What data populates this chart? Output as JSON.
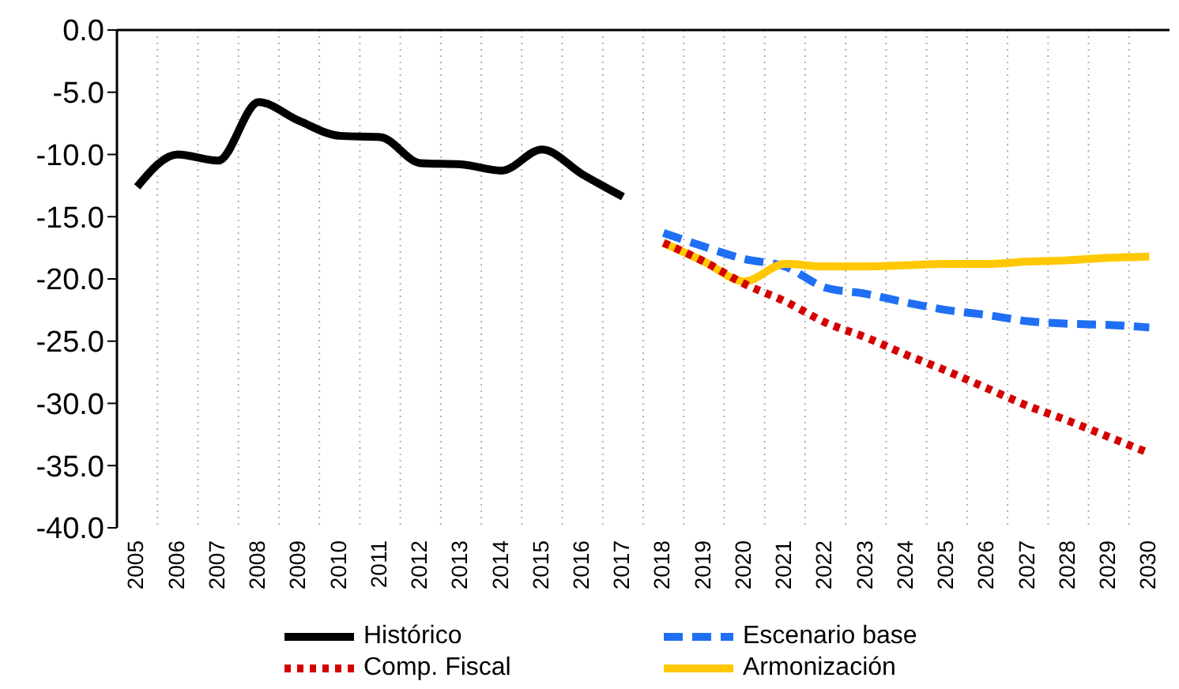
{
  "chart_data": {
    "type": "line",
    "categories": [
      "2005",
      "2006",
      "2007",
      "2008",
      "2009",
      "2010",
      "2011",
      "2012",
      "2013",
      "2014",
      "2015",
      "2016",
      "2017",
      "2018",
      "2019",
      "2020",
      "2021",
      "2022",
      "2023",
      "2024",
      "2025",
      "2026",
      "2027",
      "2028",
      "2029",
      "2030"
    ],
    "series": [
      {
        "name": "Histórico",
        "color": "#000000",
        "line_style": "solid",
        "values": [
          -12.6,
          -10.0,
          -10.5,
          -5.8,
          -7.3,
          -8.5,
          -8.6,
          -10.7,
          -10.8,
          -11.3,
          -9.6,
          -11.6,
          -13.4,
          null,
          null,
          null,
          null,
          null,
          null,
          null,
          null,
          null,
          null,
          null,
          null,
          null
        ]
      },
      {
        "name": "Escenario base",
        "color": "#1f6ff5",
        "line_style": "dashed",
        "values": [
          null,
          null,
          null,
          null,
          null,
          null,
          null,
          null,
          null,
          null,
          null,
          null,
          null,
          -16.3,
          -17.4,
          -18.4,
          -19.0,
          -20.7,
          -21.2,
          -21.9,
          -22.5,
          -22.9,
          -23.4,
          -23.6,
          -23.7,
          -23.9
        ]
      },
      {
        "name": "Comp. Fiscal",
        "color": "#d40000",
        "line_style": "dotted",
        "values": [
          null,
          null,
          null,
          null,
          null,
          null,
          null,
          null,
          null,
          null,
          null,
          null,
          null,
          -17.1,
          -18.6,
          -20.4,
          -21.8,
          -23.5,
          -24.7,
          -26.1,
          -27.4,
          -28.8,
          -30.2,
          -31.4,
          -32.7,
          -34.0
        ]
      },
      {
        "name": "Armonización",
        "color": "#ffc800",
        "line_style": "solid",
        "values": [
          null,
          null,
          null,
          null,
          null,
          null,
          null,
          null,
          null,
          null,
          null,
          null,
          null,
          -17.1,
          -18.6,
          -20.2,
          -18.8,
          -19.0,
          -19.0,
          -18.9,
          -18.8,
          -18.8,
          -18.6,
          -18.5,
          -18.3,
          -18.2
        ]
      }
    ],
    "ylim": [
      -40,
      0
    ],
    "yticks": [
      {
        "value": 0,
        "label": "0.0"
      },
      {
        "value": -5,
        "label": "-5.0"
      },
      {
        "value": -10,
        "label": "-10.0"
      },
      {
        "value": -15,
        "label": "-15.0"
      },
      {
        "value": -20,
        "label": "-20.0"
      },
      {
        "value": -25,
        "label": "-25.0"
      },
      {
        "value": -30,
        "label": "-30.0"
      },
      {
        "value": -35,
        "label": "-35.0"
      },
      {
        "value": -40,
        "label": "-40.0"
      }
    ],
    "grid": "x",
    "legend": "bottom",
    "marker": "none"
  }
}
